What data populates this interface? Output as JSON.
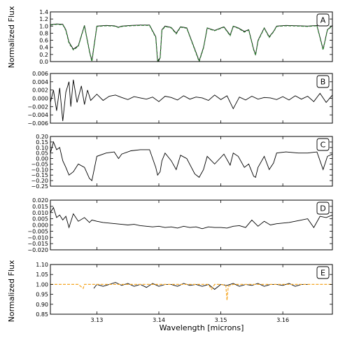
{
  "figure": {
    "xlabel": "Wavelength [microns]",
    "ylabel_top": "Normalized Flux",
    "ylabel_bottom": "Normalized Flux"
  },
  "chart_data": [
    {
      "panel": "A",
      "type": "line",
      "xlim": [
        3.1225,
        3.168
      ],
      "ylim": [
        0.0,
        1.4
      ],
      "yticks": [
        "0.0",
        "0.2",
        "0.4",
        "0.6",
        "0.8",
        "1.0",
        "1.2",
        "1.4"
      ],
      "grid": false,
      "series": [
        {
          "color": "#000000",
          "style": "solid",
          "x": [
            3.1225,
            3.1235,
            3.1245,
            3.125,
            3.1255,
            3.1262,
            3.127,
            3.128,
            3.1288,
            3.1292,
            3.13,
            3.1315,
            3.1328,
            3.1335,
            3.134,
            3.1355,
            3.137,
            3.1385,
            3.1395,
            3.1398,
            3.1402,
            3.1405,
            3.141,
            3.142,
            3.1428,
            3.1435,
            3.1445,
            3.1458,
            3.1465,
            3.1472,
            3.1478,
            3.149,
            3.1505,
            3.1515,
            3.152,
            3.1528,
            3.1538,
            3.1545,
            3.1553,
            3.1556,
            3.156,
            3.157,
            3.1578,
            3.1585,
            3.159,
            3.1605,
            3.1625,
            3.164,
            3.1655,
            3.1665,
            3.1672,
            3.168
          ],
          "y": [
            1.04,
            1.06,
            1.05,
            0.9,
            0.55,
            0.35,
            0.45,
            1.02,
            0.3,
            0.02,
            1.0,
            1.02,
            1.01,
            0.97,
            1.0,
            1.02,
            1.03,
            1.03,
            0.7,
            0.02,
            0.1,
            0.9,
            1.0,
            0.96,
            0.8,
            0.98,
            0.95,
            0.35,
            0.02,
            0.4,
            0.95,
            0.88,
            0.98,
            0.75,
            1.0,
            0.95,
            0.85,
            0.9,
            0.35,
            0.2,
            0.6,
            0.95,
            0.7,
            0.85,
            1.0,
            1.02,
            1.01,
            1.0,
            1.02,
            0.35,
            0.9,
            1.02
          ]
        },
        {
          "color": "#2e7d32",
          "style": "dashed",
          "x": [
            3.1225,
            3.1235,
            3.1245,
            3.125,
            3.1255,
            3.1262,
            3.127,
            3.128,
            3.1288,
            3.1292,
            3.13,
            3.1315,
            3.1328,
            3.1335,
            3.134,
            3.1355,
            3.137,
            3.1385,
            3.1395,
            3.1398,
            3.1402,
            3.1405,
            3.141,
            3.142,
            3.1428,
            3.1435,
            3.1445,
            3.1458,
            3.1465,
            3.1472,
            3.1478,
            3.149,
            3.1505,
            3.1515,
            3.152,
            3.1528,
            3.1538,
            3.1545,
            3.1553,
            3.1556,
            3.156,
            3.157,
            3.1578,
            3.1585,
            3.159,
            3.1605,
            3.1625,
            3.164,
            3.1655,
            3.1665,
            3.1672,
            3.168
          ],
          "y": [
            1.03,
            1.05,
            1.04,
            0.88,
            0.52,
            0.33,
            0.43,
            1.01,
            0.28,
            0.0,
            0.99,
            1.01,
            1.0,
            0.96,
            0.99,
            1.01,
            1.02,
            1.02,
            0.68,
            0.0,
            0.08,
            0.88,
            0.99,
            0.95,
            0.78,
            0.97,
            0.94,
            0.33,
            0.0,
            0.38,
            0.94,
            0.87,
            0.97,
            0.73,
            0.99,
            0.94,
            0.83,
            0.89,
            0.33,
            0.18,
            0.58,
            0.94,
            0.68,
            0.84,
            0.99,
            1.01,
            1.0,
            0.99,
            1.01,
            0.33,
            0.89,
            1.01
          ]
        }
      ]
    },
    {
      "panel": "B",
      "type": "line",
      "xlim": [
        3.1225,
        3.168
      ],
      "ylim": [
        -0.006,
        0.006
      ],
      "yticks": [
        "−0.006",
        "−0.004",
        "−0.002",
        "0.000",
        "0.002",
        "0.004",
        "0.006"
      ],
      "grid": false,
      "series": [
        {
          "color": "#000000",
          "style": "solid",
          "x": [
            3.1225,
            3.123,
            3.1235,
            3.124,
            3.1245,
            3.125,
            3.1255,
            3.1258,
            3.1262,
            3.1268,
            3.1275,
            3.128,
            3.1285,
            3.129,
            3.13,
            3.131,
            3.132,
            3.133,
            3.134,
            3.135,
            3.136,
            3.137,
            3.138,
            3.139,
            3.14,
            3.141,
            3.142,
            3.143,
            3.144,
            3.145,
            3.146,
            3.147,
            3.148,
            3.149,
            3.15,
            3.151,
            3.152,
            3.153,
            3.154,
            3.155,
            3.156,
            3.157,
            3.158,
            3.159,
            3.16,
            3.161,
            3.162,
            3.163,
            3.164,
            3.165,
            3.166,
            3.167,
            3.168
          ],
          "y": [
            -0.001,
            0.002,
            -0.003,
            0.0025,
            -0.0055,
            0.0015,
            0.004,
            -0.002,
            0.0045,
            -0.001,
            0.003,
            -0.0015,
            0.002,
            -0.0005,
            0.001,
            -0.0005,
            0.0005,
            0.0008,
            0.0002,
            -0.0003,
            0.0004,
            0.0001,
            -0.0002,
            0.0003,
            -0.0008,
            0.0005,
            0.0002,
            -0.0004,
            0.0006,
            -0.0002,
            0.0003,
            0.0001,
            -0.0005,
            0.0008,
            -0.0003,
            0.0006,
            -0.0025,
            0.0003,
            -0.0004,
            0.0005,
            -0.0002,
            0.0002,
            0.0001,
            -0.0003,
            0.0004,
            -0.0004,
            0.0006,
            -0.0002,
            0.0005,
            -0.0008,
            0.0012,
            -0.001,
            0.0008
          ]
        }
      ]
    },
    {
      "panel": "C",
      "type": "line",
      "xlim": [
        3.1225,
        3.168
      ],
      "ylim": [
        -0.25,
        0.2
      ],
      "yticks": [
        "−0.25",
        "−0.20",
        "−0.15",
        "−0.10",
        "−0.05",
        "0.00",
        "0.05",
        "0.10",
        "0.15",
        "0.20"
      ],
      "grid": false,
      "series": [
        {
          "color": "#000000",
          "style": "solid",
          "x": [
            3.1225,
            3.123,
            3.1235,
            3.124,
            3.1245,
            3.125,
            3.1255,
            3.1262,
            3.127,
            3.128,
            3.1288,
            3.1292,
            3.13,
            3.1315,
            3.1328,
            3.1335,
            3.134,
            3.1355,
            3.137,
            3.1385,
            3.1395,
            3.1398,
            3.1402,
            3.1405,
            3.141,
            3.142,
            3.1428,
            3.1435,
            3.1445,
            3.1458,
            3.1465,
            3.1472,
            3.1478,
            3.149,
            3.1505,
            3.1515,
            3.152,
            3.1528,
            3.1538,
            3.1545,
            3.1553,
            3.1556,
            3.156,
            3.157,
            3.1578,
            3.1585,
            3.159,
            3.1605,
            3.1625,
            3.164,
            3.1655,
            3.1665,
            3.1672,
            3.168
          ],
          "y": [
            0.05,
            0.15,
            0.08,
            0.1,
            -0.02,
            -0.08,
            -0.15,
            -0.12,
            -0.05,
            -0.08,
            -0.18,
            -0.2,
            0.02,
            0.05,
            0.06,
            0.0,
            0.04,
            0.07,
            0.08,
            0.08,
            -0.08,
            -0.15,
            -0.12,
            -0.02,
            0.05,
            -0.02,
            -0.1,
            0.03,
            0.0,
            -0.14,
            -0.17,
            -0.1,
            0.02,
            -0.05,
            0.04,
            -0.06,
            0.05,
            0.02,
            -0.08,
            -0.05,
            -0.16,
            -0.17,
            -0.08,
            0.02,
            -0.1,
            -0.04,
            0.05,
            0.06,
            0.05,
            0.05,
            0.06,
            -0.1,
            0.02,
            0.04
          ]
        }
      ]
    },
    {
      "panel": "D",
      "type": "line",
      "xlim": [
        3.1225,
        3.168
      ],
      "ylim": [
        -0.02,
        0.02
      ],
      "yticks": [
        "−0.020",
        "−0.015",
        "−0.010",
        "−0.005",
        "0.000",
        "0.005",
        "0.010",
        "0.015",
        "0.020"
      ],
      "grid": false,
      "series": [
        {
          "color": "#000000",
          "style": "solid",
          "x": [
            3.1225,
            3.123,
            3.1235,
            3.124,
            3.1245,
            3.125,
            3.1255,
            3.1262,
            3.127,
            3.128,
            3.1288,
            3.1292,
            3.13,
            3.131,
            3.132,
            3.133,
            3.134,
            3.135,
            3.136,
            3.137,
            3.138,
            3.139,
            3.14,
            3.141,
            3.142,
            3.143,
            3.144,
            3.145,
            3.146,
            3.147,
            3.148,
            3.149,
            3.15,
            3.151,
            3.152,
            3.153,
            3.154,
            3.155,
            3.156,
            3.157,
            3.158,
            3.159,
            3.16,
            3.161,
            3.162,
            3.163,
            3.164,
            3.165,
            3.166,
            3.167,
            3.168
          ],
          "y": [
            0.01,
            0.014,
            0.006,
            0.008,
            0.004,
            0.007,
            -0.002,
            0.009,
            0.003,
            0.006,
            0.002,
            0.004,
            0.003,
            0.002,
            0.0015,
            0.001,
            0.0005,
            0.0,
            0.0005,
            -0.0005,
            -0.001,
            -0.0015,
            -0.001,
            -0.002,
            -0.0015,
            -0.0025,
            -0.001,
            -0.002,
            -0.0015,
            -0.003,
            -0.0015,
            -0.002,
            -0.002,
            -0.0025,
            -0.001,
            -0.0005,
            -0.002,
            0.004,
            -0.001,
            0.003,
            0.0,
            0.001,
            0.0015,
            0.002,
            0.003,
            0.004,
            0.005,
            -0.002,
            0.007,
            0.006,
            0.008
          ]
        }
      ]
    },
    {
      "panel": "E",
      "type": "line",
      "xlim": [
        3.1225,
        3.168
      ],
      "ylim": [
        0.85,
        1.1
      ],
      "yticks": [
        "0.85",
        "0.90",
        "0.95",
        "1.00",
        "1.05",
        "1.10"
      ],
      "grid": false,
      "series": [
        {
          "color": "#000000",
          "style": "solid",
          "x": [
            3.1295,
            3.13,
            3.131,
            3.132,
            3.133,
            3.134,
            3.135,
            3.136,
            3.137,
            3.138,
            3.139,
            3.14,
            3.141,
            3.142,
            3.143,
            3.144,
            3.145,
            3.146,
            3.147,
            3.148,
            3.149,
            3.15,
            3.151,
            3.152,
            3.153,
            3.154,
            3.155,
            3.156,
            3.157,
            3.158,
            3.159,
            3.16,
            3.161,
            3.162,
            3.163,
            3.164
          ],
          "y": [
            0.98,
            1.0,
            0.99,
            1.0,
            1.01,
            0.995,
            1.005,
            0.99,
            1.0,
            0.985,
            1.005,
            0.99,
            1.0,
            1.0,
            0.99,
            1.005,
            0.995,
            1.0,
            0.99,
            1.0,
            0.975,
            1.0,
            0.995,
            1.005,
            0.99,
            1.0,
            0.995,
            1.005,
            0.99,
            1.0,
            1.0,
            0.995,
            1.005,
            0.99,
            1.0,
            1.0
          ]
        },
        {
          "color": "#f5a623",
          "style": "dashed",
          "x": [
            3.1225,
            3.125,
            3.127,
            3.1278,
            3.128,
            3.1285,
            3.13,
            3.135,
            3.14,
            3.145,
            3.148,
            3.1485,
            3.149,
            3.15,
            3.1508,
            3.151,
            3.1512,
            3.152,
            3.155,
            3.158,
            3.16,
            3.163,
            3.165,
            3.168
          ],
          "y": [
            1.0,
            1.0,
            1.0,
            0.98,
            1.0,
            1.0,
            1.0,
            1.0,
            1.0,
            1.0,
            1.0,
            0.975,
            1.0,
            1.0,
            0.995,
            0.92,
            0.99,
            1.0,
            1.0,
            1.0,
            1.0,
            1.0,
            1.0,
            1.0
          ]
        }
      ]
    }
  ],
  "xaxis": {
    "ticks": [
      3.13,
      3.14,
      3.15,
      3.16
    ],
    "tick_labels": [
      "3.13",
      "3.14",
      "3.15",
      "3.16"
    ]
  }
}
